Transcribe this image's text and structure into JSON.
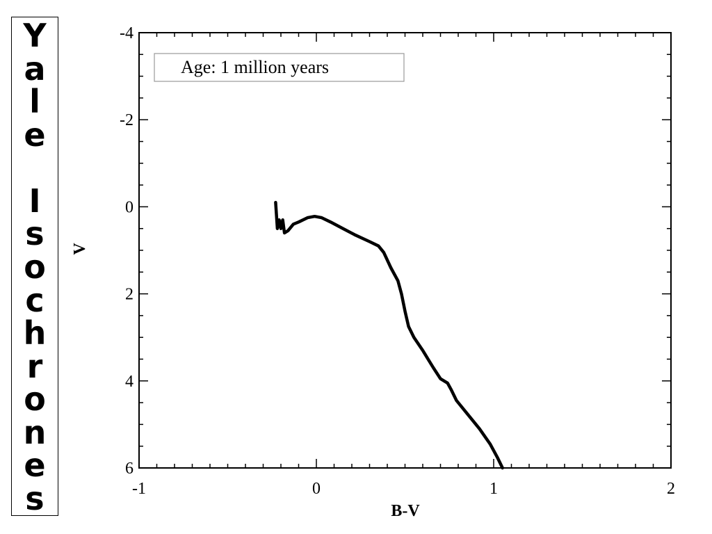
{
  "side_title": "Yale Isochrones",
  "chart_data": {
    "type": "line",
    "title": "",
    "xlabel": "B-V",
    "ylabel": "V",
    "xlim": [
      -1,
      2
    ],
    "ylim": [
      -4,
      6
    ],
    "y_inverted": true,
    "x_ticks": [
      -1,
      0,
      1,
      2
    ],
    "x_tick_labels": [
      "-1",
      "0",
      "1",
      "2"
    ],
    "y_ticks": [
      -4,
      -2,
      0,
      2,
      4,
      6
    ],
    "y_tick_labels": [
      "-4",
      "-2",
      "0",
      "2",
      "4",
      "6"
    ],
    "grid": false,
    "legend_text": "Age: 1 million years",
    "legend_position": "top-left",
    "line_color": "#000000",
    "series": [
      {
        "x": [
          -0.23,
          -0.22,
          -0.21,
          -0.2,
          -0.19,
          -0.18,
          -0.16,
          -0.13,
          -0.1,
          -0.05,
          -0.01,
          0.03,
          0.08,
          0.15,
          0.22,
          0.3,
          0.35,
          0.38,
          0.42,
          0.46,
          0.48,
          0.5,
          0.52,
          0.55,
          0.6,
          0.63,
          0.66,
          0.7,
          0.74,
          0.76,
          0.79,
          0.85,
          0.92,
          0.98,
          1.02,
          1.05
        ],
        "y": [
          -0.1,
          0.5,
          0.3,
          0.5,
          0.3,
          0.6,
          0.55,
          0.4,
          0.35,
          0.25,
          0.22,
          0.25,
          0.35,
          0.5,
          0.65,
          0.8,
          0.9,
          1.05,
          1.4,
          1.7,
          2.0,
          2.4,
          2.75,
          3.0,
          3.3,
          3.5,
          3.7,
          3.95,
          4.05,
          4.2,
          4.45,
          4.75,
          5.1,
          5.45,
          5.75,
          6.0
        ]
      }
    ]
  }
}
